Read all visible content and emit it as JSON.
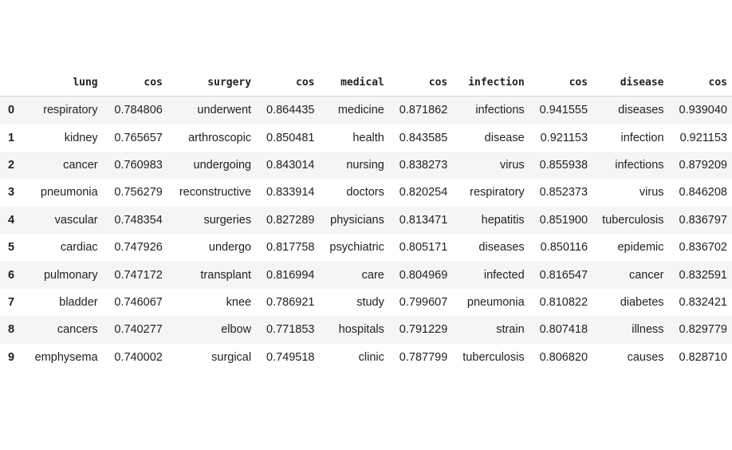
{
  "table": {
    "columns": [
      "lung",
      "cos",
      "surgery",
      "cos",
      "medical",
      "cos",
      "infection",
      "cos",
      "disease",
      "cos"
    ],
    "rows": [
      {
        "index": "0",
        "cells": [
          "respiratory",
          "0.784806",
          "underwent",
          "0.864435",
          "medicine",
          "0.871862",
          "infections",
          "0.941555",
          "diseases",
          "0.939040"
        ]
      },
      {
        "index": "1",
        "cells": [
          "kidney",
          "0.765657",
          "arthroscopic",
          "0.850481",
          "health",
          "0.843585",
          "disease",
          "0.921153",
          "infection",
          "0.921153"
        ]
      },
      {
        "index": "2",
        "cells": [
          "cancer",
          "0.760983",
          "undergoing",
          "0.843014",
          "nursing",
          "0.838273",
          "virus",
          "0.855938",
          "infections",
          "0.879209"
        ]
      },
      {
        "index": "3",
        "cells": [
          "pneumonia",
          "0.756279",
          "reconstructive",
          "0.833914",
          "doctors",
          "0.820254",
          "respiratory",
          "0.852373",
          "virus",
          "0.846208"
        ]
      },
      {
        "index": "4",
        "cells": [
          "vascular",
          "0.748354",
          "surgeries",
          "0.827289",
          "physicians",
          "0.813471",
          "hepatitis",
          "0.851900",
          "tuberculosis",
          "0.836797"
        ]
      },
      {
        "index": "5",
        "cells": [
          "cardiac",
          "0.747926",
          "undergo",
          "0.817758",
          "psychiatric",
          "0.805171",
          "diseases",
          "0.850116",
          "epidemic",
          "0.836702"
        ]
      },
      {
        "index": "6",
        "cells": [
          "pulmonary",
          "0.747172",
          "transplant",
          "0.816994",
          "care",
          "0.804969",
          "infected",
          "0.816547",
          "cancer",
          "0.832591"
        ]
      },
      {
        "index": "7",
        "cells": [
          "bladder",
          "0.746067",
          "knee",
          "0.786921",
          "study",
          "0.799607",
          "pneumonia",
          "0.810822",
          "diabetes",
          "0.832421"
        ]
      },
      {
        "index": "8",
        "cells": [
          "cancers",
          "0.740277",
          "elbow",
          "0.771853",
          "hospitals",
          "0.791229",
          "strain",
          "0.807418",
          "illness",
          "0.829779"
        ]
      },
      {
        "index": "9",
        "cells": [
          "emphysema",
          "0.740002",
          "surgical",
          "0.749518",
          "clinic",
          "0.787799",
          "tuberculosis",
          "0.806820",
          "causes",
          "0.828710"
        ]
      }
    ]
  }
}
